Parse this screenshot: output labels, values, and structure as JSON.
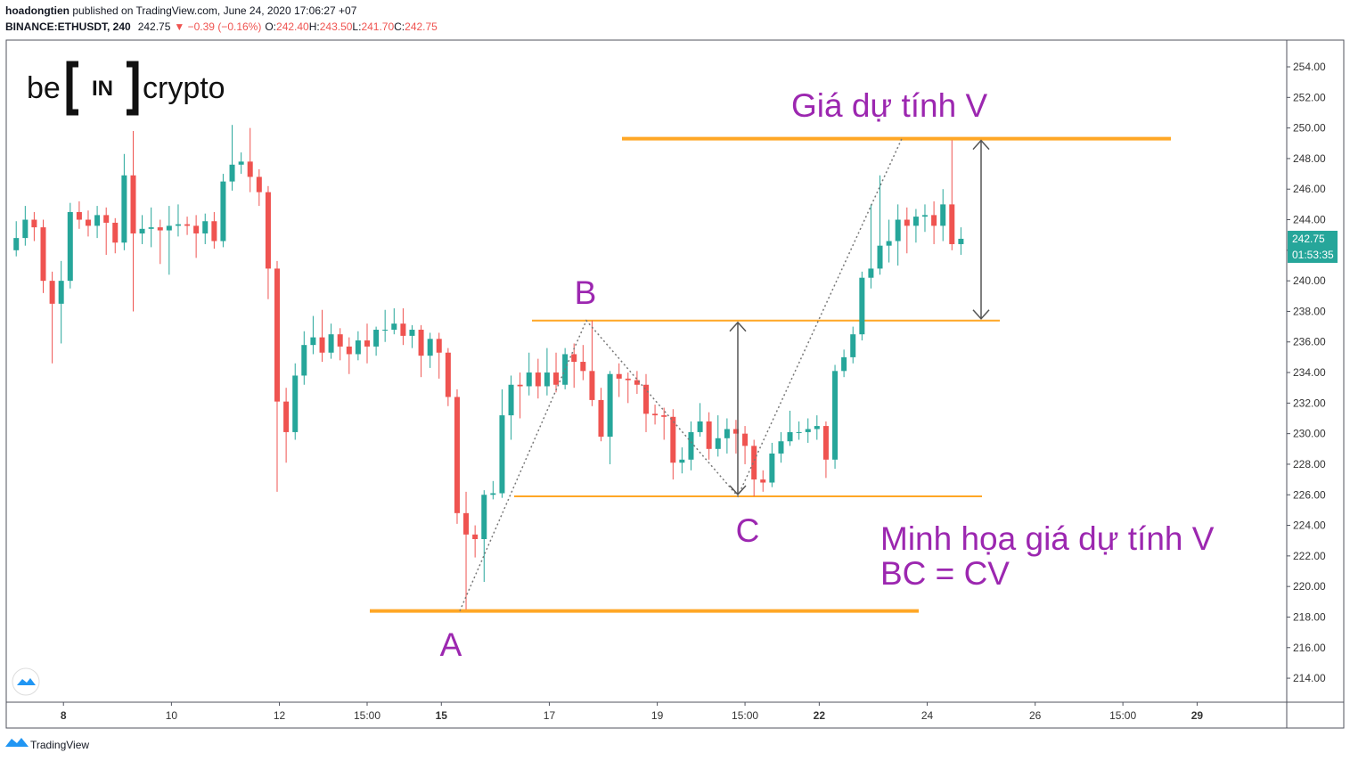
{
  "header": {
    "author": "hoadongtien",
    "published": "published on TradingView.com, June 24, 2020 17:06:27 +07",
    "symbol": "BINANCE:ETHUSDT, 240",
    "change": "▼ −0.39 (−0.16%)",
    "ohlc": [
      {
        "key": "O:",
        "value": "242.40"
      },
      {
        "key": "H:",
        "value": "243.50"
      },
      {
        "key": "L:",
        "value": "241.70"
      },
      {
        "key": "C:",
        "value": "242.75"
      }
    ]
  },
  "logo": {
    "left": "be",
    "mid": "IN",
    "right": "crypto"
  },
  "footer": {
    "brand": "TradingView"
  },
  "chart_data": {
    "type": "candlestick",
    "up_color": "#26a69a",
    "down_color": "#ef5350",
    "x": [
      7.125,
      7.292,
      7.458,
      7.625,
      7.792,
      7.958,
      8.125,
      8.292,
      8.458,
      8.625,
      8.792,
      8.958,
      9.125,
      9.292,
      9.458,
      9.625,
      9.792,
      9.958,
      10.125,
      10.292,
      10.458,
      10.625,
      10.792,
      10.958,
      11.125,
      11.292,
      11.458,
      11.625,
      11.792,
      11.958,
      12.125,
      12.292,
      12.458,
      12.625,
      12.792,
      12.958,
      13.125,
      13.292,
      13.458,
      13.625,
      13.792,
      13.958,
      14.125,
      14.292,
      14.458,
      14.625,
      14.792,
      14.958,
      15.125,
      15.292,
      15.458,
      15.625,
      15.792,
      15.958,
      16.125,
      16.292,
      16.458,
      16.625,
      16.792,
      16.958,
      17.125,
      17.292,
      17.458,
      17.625,
      17.792,
      17.958,
      18.125,
      18.292,
      18.458,
      18.625,
      18.792,
      18.958,
      19.125,
      19.292,
      19.458,
      19.625,
      19.792,
      19.958,
      20.125,
      20.292,
      20.458,
      20.625,
      20.792,
      20.958,
      21.125,
      21.292,
      21.458,
      21.625,
      21.792,
      21.958,
      22.125,
      22.292,
      22.458,
      22.625,
      22.792,
      22.958,
      23.125,
      23.292,
      23.458,
      23.625,
      23.792,
      23.958,
      24.125,
      24.292,
      24.458,
      24.625
    ],
    "open": [
      242.0,
      242.8,
      244,
      243.5,
      240,
      238.5,
      240,
      244.5,
      244,
      243.6,
      244.3,
      243.8,
      242.5,
      246.9,
      243.1,
      243.4,
      243.5,
      243.3,
      243.6,
      243.7,
      243.6,
      243.1,
      243.9,
      242.6,
      246.5,
      247.6,
      247.8,
      246.8,
      245.8,
      240.8,
      232.1,
      230.1,
      233.8,
      235.8,
      236.3,
      235.3,
      236.5,
      235.7,
      235.2,
      236.1,
      235.7,
      236.8,
      236.8,
      237.2,
      236.4,
      236.8,
      235.1,
      236.2,
      235.3,
      232.4,
      224.8,
      223.4,
      223.1,
      226.0,
      226.1,
      231.2,
      233.2,
      233.1,
      234.0,
      233.1,
      234.0,
      233.2,
      235.2,
      234.7,
      234.1,
      232.2,
      229.8,
      233.9,
      233.6,
      233.5,
      233.2,
      231.3,
      231.2,
      231.1,
      228.1,
      228.3,
      230.1,
      230.8,
      229.0,
      229.7,
      230.3,
      230.0,
      229.2,
      227.0,
      226.8,
      228.7,
      229.5,
      230.1,
      230.1,
      230.3,
      230.5,
      228.3,
      234.1,
      235.0,
      236.5,
      240.2,
      240.8,
      242.3,
      242.6,
      244.0,
      243.6,
      244.2,
      244.3,
      243.6,
      245.0,
      242.4
    ],
    "high": [
      243.9,
      244.9,
      244.5,
      244.0,
      240.6,
      241.3,
      245.1,
      245.2,
      244.6,
      244.9,
      244.8,
      244.1,
      248.3,
      249.8,
      244.3,
      244.8,
      244.0,
      244.9,
      245.0,
      244.2,
      244.3,
      244.4,
      244.5,
      247.0,
      250.2,
      248.4,
      250.0,
      247.3,
      246.2,
      241.3,
      233.0,
      234.6,
      236.7,
      237.7,
      238.1,
      237.2,
      236.9,
      236.3,
      236.7,
      237.2,
      237.0,
      238.1,
      238.2,
      238.2,
      237.1,
      237.1,
      236.6,
      236.6,
      235.6,
      232.9,
      226.2,
      224.0,
      226.3,
      226.9,
      232.9,
      233.8,
      234.0,
      235.3,
      234.9,
      235.6,
      235.3,
      235.6,
      235.9,
      235.8,
      237.4,
      233.0,
      234.1,
      234.6,
      234.0,
      234.1,
      233.9,
      231.9,
      231.7,
      231.6,
      229.1,
      230.8,
      232.0,
      231.4,
      231.2,
      231.0,
      230.9,
      230.5,
      229.6,
      227.6,
      229.4,
      230.1,
      231.5,
      230.8,
      231.0,
      231.2,
      230.8,
      234.5,
      235.5,
      237.0,
      240.6,
      245.0,
      246.9,
      244.0,
      245.0,
      244.8,
      244.7,
      245.0,
      245.2,
      246.0,
      249.2,
      243.5
    ],
    "low": [
      241.6,
      242.3,
      242.6,
      239.2,
      234.6,
      235.9,
      239.5,
      243.4,
      242.9,
      242.8,
      241.7,
      241.8,
      242.0,
      238.0,
      242.4,
      242.2,
      241.1,
      240.4,
      242.9,
      243.0,
      241.5,
      242.4,
      242.1,
      242.2,
      245.9,
      247.0,
      245.8,
      244.9,
      238.8,
      226.2,
      228.1,
      229.6,
      233.2,
      235.2,
      234.7,
      234.9,
      234.8,
      233.9,
      234.8,
      234.6,
      235.1,
      236.0,
      236.5,
      235.8,
      235.6,
      233.7,
      234.3,
      233.6,
      231.8,
      224.1,
      218.5,
      221.9,
      220.3,
      225.7,
      225.8,
      229.6,
      231.0,
      232.5,
      232.3,
      232.5,
      232.7,
      232.9,
      233.0,
      233.5,
      231.8,
      229.5,
      228.0,
      232.4,
      232.0,
      232.6,
      230.1,
      230.6,
      229.6,
      227.0,
      227.4,
      227.6,
      229.8,
      228.3,
      228.5,
      228.7,
      228.7,
      228.0,
      225.9,
      226.2,
      226.5,
      228.1,
      229.2,
      229.6,
      229.4,
      229.6,
      227.1,
      227.7,
      233.7,
      234.6,
      236.1,
      239.5,
      240.4,
      241.2,
      241.0,
      241.8,
      242.5,
      243.2,
      242.4,
      242.6,
      242.0,
      241.7
    ],
    "close": [
      242.8,
      244,
      243.5,
      240,
      238.5,
      240,
      244.5,
      244,
      243.6,
      244.3,
      243.8,
      242.5,
      246.9,
      243.1,
      243.4,
      243.5,
      243.3,
      243.6,
      243.7,
      243.6,
      243.1,
      243.9,
      242.6,
      246.5,
      247.6,
      247.8,
      246.8,
      245.8,
      240.8,
      232.1,
      230.1,
      233.8,
      235.8,
      236.3,
      235.3,
      236.5,
      235.7,
      235.2,
      236.1,
      235.7,
      236.8,
      236.8,
      237.2,
      236.4,
      236.8,
      235.1,
      236.2,
      235.3,
      232.4,
      224.8,
      223.4,
      223.1,
      226.0,
      226.1,
      231.2,
      233.2,
      233.1,
      234.0,
      233.1,
      234.0,
      233.2,
      235.2,
      234.7,
      234.1,
      232.2,
      229.8,
      233.9,
      233.6,
      233.5,
      233.2,
      231.3,
      231.2,
      231.1,
      228.1,
      228.3,
      230.1,
      230.8,
      229.0,
      229.7,
      230.3,
      230.0,
      229.2,
      227.0,
      226.8,
      228.7,
      229.5,
      230.1,
      230.1,
      230.3,
      230.5,
      228.3,
      234.1,
      235.0,
      236.5,
      240.2,
      240.8,
      242.3,
      242.6,
      244.0,
      243.6,
      244.2,
      244.3,
      243.6,
      245.0,
      242.4,
      242.75
    ],
    "countdown": "01:53:35",
    "xlim": [
      6.94,
      30.66
    ],
    "xticks": [
      {
        "value": 8,
        "label": "8",
        "strong": true
      },
      {
        "value": 10,
        "label": "10"
      },
      {
        "value": 12,
        "label": "12"
      },
      {
        "value": 13.625,
        "label": "15:00"
      },
      {
        "value": 15,
        "label": "15",
        "strong": true
      },
      {
        "value": 17,
        "label": "17"
      },
      {
        "value": 19,
        "label": "19"
      },
      {
        "value": 20.625,
        "label": "15:00"
      },
      {
        "value": 22,
        "label": "22",
        "strong": true
      },
      {
        "value": 24,
        "label": "24"
      },
      {
        "value": 26,
        "label": "26"
      },
      {
        "value": 27.625,
        "label": "15:00"
      },
      {
        "value": 29,
        "label": "29",
        "strong": true
      }
    ],
    "ylim": [
      212.43,
      255.75
    ],
    "yticks": [
      {
        "value": 214,
        "label": "214.00"
      },
      {
        "value": 216,
        "label": "216.00"
      },
      {
        "value": 218,
        "label": "218.00"
      },
      {
        "value": 220,
        "label": "220.00"
      },
      {
        "value": 222,
        "label": "222.00"
      },
      {
        "value": 224,
        "label": "224.00"
      },
      {
        "value": 226,
        "label": "226.00"
      },
      {
        "value": 228,
        "label": "228.00"
      },
      {
        "value": 230,
        "label": "230.00"
      },
      {
        "value": 232,
        "label": "232.00"
      },
      {
        "value": 234,
        "label": "234.00"
      },
      {
        "value": 236,
        "label": "236.00"
      },
      {
        "value": 238,
        "label": "238.00"
      },
      {
        "value": 240,
        "label": "240.00"
      },
      {
        "value": 242,
        "label": "242.00"
      },
      {
        "value": 244,
        "label": "244.00"
      },
      {
        "value": 246,
        "label": "246.00"
      },
      {
        "value": 248,
        "label": "248.00"
      },
      {
        "value": 250,
        "label": "250.00"
      },
      {
        "value": 252,
        "label": "252.00"
      },
      {
        "value": 254,
        "label": "254.00"
      }
    ],
    "levels": [
      249.3,
      237.4,
      225.9,
      218.4
    ],
    "level_color": "#ffa726",
    "annotations": {
      "target": "Giá dự tính V",
      "a": "A",
      "b": "B",
      "c": "C",
      "note1": "Minh họa giá dự tính V",
      "note2": "BC = CV"
    },
    "annotation_color": "#9c27b0"
  }
}
